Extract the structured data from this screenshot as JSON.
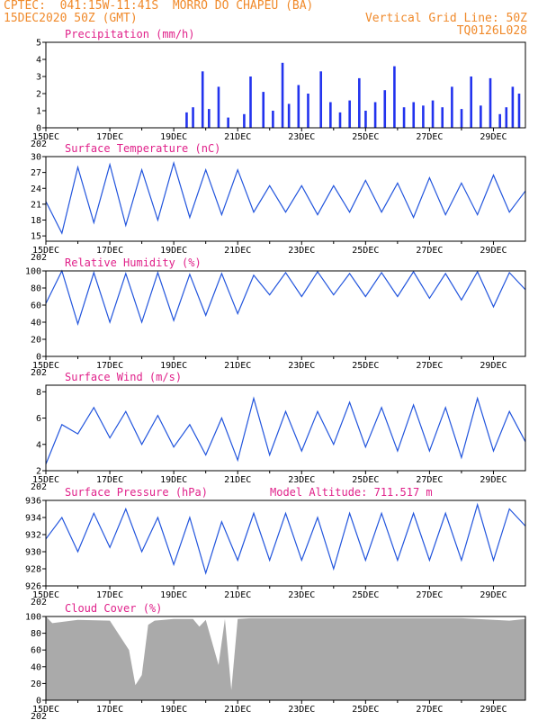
{
  "header": {
    "line1_left": "CPTEC:  041:15W-11:41S  MORRO DO CHAPEU (BA)",
    "line2_left": "15DEC2020 50Z (GMT)",
    "line2_right": "Vertical Grid Line: 50Z",
    "line3_right": "TQ0126L028"
  },
  "date_ticks": [
    "15DEC",
    "17DEC",
    "19DEC",
    "21DEC",
    "23DEC",
    "25DEC",
    "27DEC",
    "29DEC"
  ],
  "year_stub": "202",
  "colors": {
    "header": "#f08a2b",
    "title": "#e0218a",
    "line": "#2255dd",
    "bar": "#2233ee",
    "cloud": "#aaaaaa"
  },
  "chart_data": [
    {
      "type": "bar",
      "title": "Precipitation (mm/h)",
      "ylim": [
        0,
        5
      ],
      "yticks": [
        "0",
        "1",
        "2",
        "3",
        "4",
        "5"
      ],
      "x_days": [
        19.4,
        19.6,
        19.9,
        20.1,
        20.4,
        20.7,
        21.2,
        21.4,
        21.8,
        22.1,
        22.4,
        22.6,
        22.9,
        23.2,
        23.6,
        23.9,
        24.2,
        24.5,
        24.8,
        25.0,
        25.3,
        25.6,
        25.9,
        26.2,
        26.5,
        26.8,
        27.1,
        27.4,
        27.7,
        28.0,
        28.3,
        28.6,
        28.9,
        29.2,
        29.4,
        29.6,
        29.8
      ],
      "values": [
        0.9,
        1.2,
        3.3,
        1.1,
        2.4,
        0.6,
        0.8,
        3.0,
        2.1,
        1.0,
        3.8,
        1.4,
        2.5,
        2.0,
        3.3,
        1.5,
        0.9,
        1.6,
        2.9,
        1.0,
        1.5,
        2.2,
        3.6,
        1.2,
        1.5,
        1.3,
        1.6,
        1.2,
        2.4,
        1.1,
        3.0,
        1.3,
        2.9,
        0.8,
        1.2,
        2.4,
        2.0
      ]
    },
    {
      "type": "line",
      "title": "Surface Temperature (nC)",
      "ylim": [
        14,
        30
      ],
      "yticks": [
        "15",
        "18",
        "21",
        "24",
        "27",
        "30"
      ],
      "x_days": [
        15.0,
        15.5,
        16.0,
        16.5,
        17.0,
        17.5,
        18.0,
        18.5,
        19.0,
        19.5,
        20.0,
        20.5,
        21.0,
        21.5,
        22.0,
        22.5,
        23.0,
        23.5,
        24.0,
        24.5,
        25.0,
        25.5,
        26.0,
        26.5,
        27.0,
        27.5,
        28.0,
        28.5,
        29.0,
        29.5,
        30.0
      ],
      "values": [
        21.5,
        15.5,
        28,
        17.5,
        28.5,
        17,
        27.5,
        18,
        28.8,
        18.5,
        27.5,
        19,
        27.5,
        19.5,
        24.5,
        19.5,
        24.5,
        19,
        24.5,
        19.5,
        25.5,
        19.5,
        25,
        18.5,
        26,
        19,
        25,
        19,
        26.5,
        19.5,
        23.5
      ]
    },
    {
      "type": "line",
      "title": "Relative Humidity (%)",
      "ylim": [
        0,
        100
      ],
      "yticks": [
        "0",
        "20",
        "40",
        "60",
        "80",
        "100"
      ],
      "x_days": [
        15.0,
        15.5,
        16.0,
        16.5,
        17.0,
        17.5,
        18.0,
        18.5,
        19.0,
        19.5,
        20.0,
        20.5,
        21.0,
        21.5,
        22.0,
        22.5,
        23.0,
        23.5,
        24.0,
        24.5,
        25.0,
        25.5,
        26.0,
        26.5,
        27.0,
        27.5,
        28.0,
        28.5,
        29.0,
        29.5,
        30.0
      ],
      "values": [
        62,
        100,
        38,
        98,
        40,
        97,
        40,
        98,
        42,
        96,
        48,
        97,
        50,
        95,
        72,
        98,
        70,
        99,
        72,
        97,
        70,
        98,
        70,
        99,
        68,
        97,
        66,
        99,
        58,
        98,
        78
      ]
    },
    {
      "type": "line",
      "title": "Surface Wind (m/s)",
      "ylim": [
        2,
        8.5
      ],
      "yticks": [
        "2",
        "4",
        "6",
        "8"
      ],
      "x_days": [
        15.0,
        15.5,
        16.0,
        16.5,
        17.0,
        17.5,
        18.0,
        18.5,
        19.0,
        19.5,
        20.0,
        20.5,
        21.0,
        21.5,
        22.0,
        22.5,
        23.0,
        23.5,
        24.0,
        24.5,
        25.0,
        25.5,
        26.0,
        26.5,
        27.0,
        27.5,
        28.0,
        28.5,
        29.0,
        29.5,
        30.0
      ],
      "values": [
        2.5,
        5.5,
        4.8,
        6.8,
        4.5,
        6.5,
        4.0,
        6.2,
        3.8,
        5.5,
        3.2,
        6.0,
        2.8,
        7.5,
        3.2,
        6.5,
        3.5,
        6.5,
        4.0,
        7.2,
        3.8,
        6.8,
        3.5,
        7.0,
        3.5,
        6.8,
        3.0,
        7.5,
        3.5,
        6.5,
        4.2
      ]
    },
    {
      "type": "line",
      "title": "Surface Pressure (hPa)",
      "annotation": "Model Altitude: 711.517 m",
      "ylim": [
        926,
        936
      ],
      "yticks": [
        "926",
        "928",
        "930",
        "932",
        "934",
        "936"
      ],
      "x_days": [
        15.0,
        15.5,
        16.0,
        16.5,
        17.0,
        17.5,
        18.0,
        18.5,
        19.0,
        19.5,
        20.0,
        20.5,
        21.0,
        21.5,
        22.0,
        22.5,
        23.0,
        23.5,
        24.0,
        24.5,
        25.0,
        25.5,
        26.0,
        26.5,
        27.0,
        27.5,
        28.0,
        28.5,
        29.0,
        29.5,
        30.0
      ],
      "values": [
        931.5,
        934,
        930,
        934.5,
        930.5,
        935,
        930,
        934,
        928.5,
        934,
        927.5,
        933.5,
        929,
        934.5,
        929,
        934.5,
        929,
        934,
        928,
        934.5,
        929,
        934.5,
        929,
        934.5,
        929,
        934.5,
        929,
        935.5,
        929,
        935,
        933
      ]
    },
    {
      "type": "area",
      "title": "Cloud Cover (%)",
      "ylim": [
        0,
        100
      ],
      "yticks": [
        "0",
        "20",
        "40",
        "60",
        "80",
        "100"
      ],
      "x_days": [
        15.0,
        15.2,
        16.0,
        17.0,
        17.6,
        17.8,
        18.0,
        18.2,
        18.4,
        19.0,
        19.6,
        19.8,
        20.0,
        20.4,
        20.6,
        20.8,
        21.0,
        21.4,
        22.0,
        24.0,
        26.0,
        28.0,
        29.5,
        30.0
      ],
      "values": [
        100,
        92,
        96,
        95,
        60,
        18,
        30,
        90,
        95,
        97,
        97,
        88,
        96,
        42,
        97,
        12,
        97,
        98,
        98,
        98,
        98,
        98,
        95,
        97
      ]
    }
  ]
}
